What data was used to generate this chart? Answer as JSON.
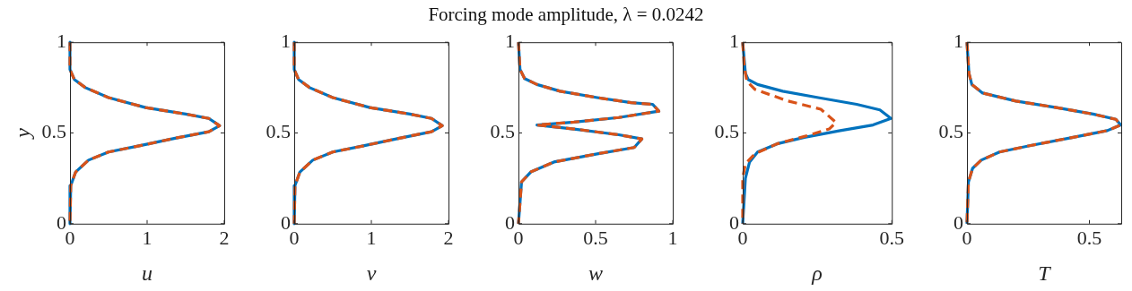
{
  "chart_data": [
    {
      "type": "other",
      "title": "Forcing mode amplitude, λ = 0.0242"
    },
    {
      "type": "line",
      "xlabel": "u",
      "ylabel": "y",
      "xlim": [
        0,
        2
      ],
      "xticks": [
        0,
        1,
        2
      ],
      "ylim": [
        0,
        1
      ],
      "yticks": [
        0,
        0.5,
        1
      ],
      "legend": false,
      "series": [
        {
          "color": "#0072bd",
          "line_style": "solid",
          "x": [
            0,
            0,
            0.056,
            0.2,
            0.5,
            0.98,
            1.5,
            1.8,
            1.94,
            1.8,
            1.35,
            0.91,
            0.5,
            0.24,
            0.074,
            0.01,
            0
          ],
          "values": [
            1,
            0.85,
            0.795,
            0.75,
            0.695,
            0.64,
            0.604,
            0.58,
            0.54,
            0.507,
            0.47,
            0.43,
            0.395,
            0.35,
            0.285,
            0.21,
            0
          ]
        },
        {
          "color": "#d95319",
          "line_style": "dashed",
          "x": [
            0,
            0,
            0.056,
            0.2,
            0.5,
            0.98,
            1.5,
            1.8,
            1.94,
            1.8,
            1.35,
            0.91,
            0.5,
            0.24,
            0.074,
            0.01,
            0
          ],
          "values": [
            1,
            0.85,
            0.795,
            0.75,
            0.695,
            0.64,
            0.604,
            0.58,
            0.54,
            0.507,
            0.47,
            0.43,
            0.395,
            0.35,
            0.285,
            0.21,
            0
          ]
        }
      ]
    },
    {
      "type": "line",
      "xlabel": "v",
      "xlim": [
        0,
        2
      ],
      "xticks": [
        0,
        1,
        2
      ],
      "ylim": [
        0,
        1
      ],
      "yticks": [
        0,
        0.5,
        1
      ],
      "legend": false,
      "series": [
        {
          "color": "#0072bd",
          "line_style": "solid",
          "x": [
            0,
            0,
            0.056,
            0.2,
            0.5,
            0.98,
            1.5,
            1.78,
            1.92,
            1.78,
            1.35,
            0.91,
            0.5,
            0.24,
            0.074,
            0.01,
            0
          ],
          "values": [
            1,
            0.85,
            0.795,
            0.75,
            0.695,
            0.64,
            0.604,
            0.58,
            0.54,
            0.507,
            0.47,
            0.43,
            0.395,
            0.35,
            0.285,
            0.21,
            0
          ]
        },
        {
          "color": "#d95319",
          "line_style": "dashed",
          "x": [
            0,
            0,
            0.056,
            0.2,
            0.5,
            0.98,
            1.5,
            1.78,
            1.92,
            1.78,
            1.35,
            0.91,
            0.5,
            0.24,
            0.074,
            0.01,
            0
          ],
          "values": [
            1,
            0.85,
            0.795,
            0.75,
            0.695,
            0.64,
            0.604,
            0.58,
            0.54,
            0.507,
            0.47,
            0.43,
            0.395,
            0.35,
            0.285,
            0.21,
            0
          ]
        }
      ]
    },
    {
      "type": "line",
      "xlabel": "w",
      "xlim": [
        0,
        1
      ],
      "xticks": [
        0,
        0.5,
        1
      ],
      "ylim": [
        0,
        1
      ],
      "yticks": [
        0,
        0.5,
        1
      ],
      "legend": false,
      "series": [
        {
          "color": "#0072bd",
          "line_style": "solid",
          "x": [
            0,
            0.01,
            0.04,
            0.12,
            0.27,
            0.51,
            0.73,
            0.87,
            0.91,
            0.65,
            0.36,
            0.12,
            0.36,
            0.65,
            0.8,
            0.75,
            0.51,
            0.23,
            0.08,
            0.02,
            0
          ],
          "values": [
            1,
            0.85,
            0.8,
            0.767,
            0.73,
            0.695,
            0.667,
            0.658,
            0.62,
            0.585,
            0.56,
            0.544,
            0.522,
            0.49,
            0.467,
            0.42,
            0.385,
            0.34,
            0.285,
            0.23,
            0
          ]
        },
        {
          "color": "#d95319",
          "line_style": "dashed",
          "x": [
            0,
            0.01,
            0.04,
            0.12,
            0.27,
            0.51,
            0.73,
            0.87,
            0.91,
            0.65,
            0.36,
            0.12,
            0.36,
            0.65,
            0.8,
            0.75,
            0.51,
            0.23,
            0.08,
            0.02,
            0
          ],
          "values": [
            1,
            0.85,
            0.8,
            0.767,
            0.73,
            0.695,
            0.667,
            0.658,
            0.62,
            0.585,
            0.56,
            0.544,
            0.522,
            0.49,
            0.467,
            0.42,
            0.385,
            0.34,
            0.285,
            0.23,
            0
          ]
        }
      ]
    },
    {
      "type": "line",
      "xlabel": "ρ",
      "xlim": [
        0,
        0.5
      ],
      "xticks": [
        0,
        0.5
      ],
      "ylim": [
        0,
        1
      ],
      "yticks": [
        0,
        0.5,
        1
      ],
      "legend": false,
      "series": [
        {
          "color": "#0072bd",
          "line_style": "solid",
          "x": [
            0,
            0.009,
            0.018,
            0.05,
            0.134,
            0.253,
            0.382,
            0.46,
            0.497,
            0.437,
            0.327,
            0.207,
            0.115,
            0.05,
            0.023,
            0.009,
            0
          ],
          "values": [
            1,
            0.83,
            0.795,
            0.767,
            0.73,
            0.695,
            0.658,
            0.627,
            0.58,
            0.544,
            0.513,
            0.476,
            0.44,
            0.395,
            0.34,
            0.25,
            0
          ]
        },
        {
          "color": "#d95319",
          "line_style": "dashed",
          "x": [
            0,
            0.005,
            0.014,
            0.041,
            0.152,
            0.262,
            0.313,
            0.29,
            0.216,
            0.115,
            0.041,
            0.009,
            0,
            0
          ],
          "values": [
            1,
            0.867,
            0.785,
            0.74,
            0.676,
            0.631,
            0.558,
            0.522,
            0.485,
            0.44,
            0.385,
            0.33,
            0.25,
            0
          ]
        }
      ]
    },
    {
      "type": "line",
      "xlabel": "T",
      "xlim": [
        0,
        0.63
      ],
      "xticks": [
        0,
        0.5
      ],
      "ylim": [
        0,
        1
      ],
      "yticks": [
        0,
        0.5,
        1
      ],
      "legend": false,
      "series": [
        {
          "color": "#0072bd",
          "line_style": "solid",
          "x": [
            0,
            0.008,
            0.02,
            0.064,
            0.2,
            0.365,
            0.515,
            0.608,
            0.628,
            0.573,
            0.434,
            0.26,
            0.133,
            0.058,
            0.023,
            0.006,
            0
          ],
          "values": [
            1,
            0.83,
            0.767,
            0.72,
            0.676,
            0.64,
            0.604,
            0.575,
            0.544,
            0.513,
            0.476,
            0.431,
            0.395,
            0.35,
            0.305,
            0.23,
            0
          ]
        },
        {
          "color": "#d95319",
          "line_style": "dashed",
          "x": [
            0,
            0.008,
            0.02,
            0.064,
            0.2,
            0.365,
            0.515,
            0.608,
            0.628,
            0.573,
            0.434,
            0.26,
            0.133,
            0.058,
            0.023,
            0.006,
            0
          ],
          "values": [
            1,
            0.83,
            0.767,
            0.72,
            0.676,
            0.64,
            0.604,
            0.575,
            0.544,
            0.513,
            0.476,
            0.431,
            0.395,
            0.35,
            0.305,
            0.23,
            0
          ]
        }
      ]
    }
  ]
}
